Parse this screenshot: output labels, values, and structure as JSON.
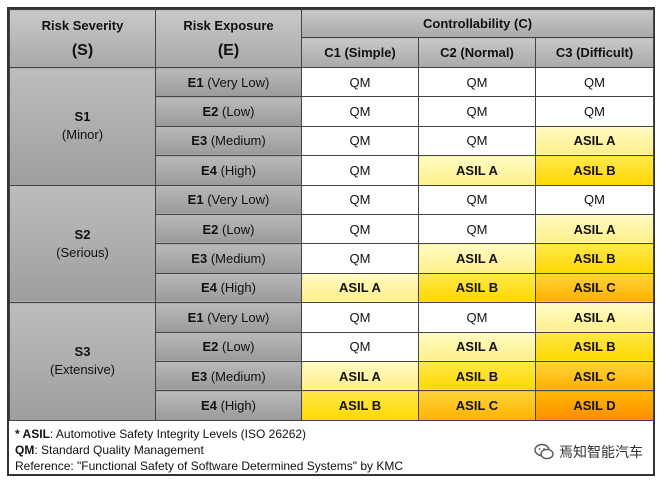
{
  "headers": {
    "severity": {
      "title": "Risk Severity",
      "symbol": "(S)"
    },
    "exposure": {
      "title": "Risk Exposure",
      "symbol": "(E)"
    },
    "controllability": {
      "title": "Controllability (C)",
      "cols": [
        "C1 (Simple)",
        "C2 (Normal)",
        "C3 (Difficult)"
      ]
    }
  },
  "severities": [
    {
      "code": "S1",
      "desc": "(Minor)",
      "rows": [
        {
          "level": "E1",
          "desc": "(Very Low)",
          "cells": [
            "QM",
            "QM",
            "QM"
          ]
        },
        {
          "level": "E2",
          "desc": "(Low)",
          "cells": [
            "QM",
            "QM",
            "QM"
          ]
        },
        {
          "level": "E3",
          "desc": "(Medium)",
          "cells": [
            "QM",
            "QM",
            "ASIL A"
          ]
        },
        {
          "level": "E4",
          "desc": "(High)",
          "cells": [
            "QM",
            "ASIL A",
            "ASIL B"
          ]
        }
      ]
    },
    {
      "code": "S2",
      "desc": "(Serious)",
      "rows": [
        {
          "level": "E1",
          "desc": "(Very Low)",
          "cells": [
            "QM",
            "QM",
            "QM"
          ]
        },
        {
          "level": "E2",
          "desc": "(Low)",
          "cells": [
            "QM",
            "QM",
            "ASIL A"
          ]
        },
        {
          "level": "E3",
          "desc": "(Medium)",
          "cells": [
            "QM",
            "ASIL A",
            "ASIL B"
          ]
        },
        {
          "level": "E4",
          "desc": "(High)",
          "cells": [
            "ASIL A",
            "ASIL B",
            "ASIL C"
          ]
        }
      ]
    },
    {
      "code": "S3",
      "desc": "(Extensive)",
      "rows": [
        {
          "level": "E1",
          "desc": "(Very Low)",
          "cells": [
            "QM",
            "QM",
            "ASIL A"
          ]
        },
        {
          "level": "E2",
          "desc": "(Low)",
          "cells": [
            "QM",
            "ASIL A",
            "ASIL B"
          ]
        },
        {
          "level": "E3",
          "desc": "(Medium)",
          "cells": [
            "ASIL A",
            "ASIL B",
            "ASIL C"
          ]
        },
        {
          "level": "E4",
          "desc": "(High)",
          "cells": [
            "ASIL B",
            "ASIL C",
            "ASIL D"
          ]
        }
      ]
    }
  ],
  "cell_colors": {
    "QM": "#ffffff",
    "ASIL A": "#fff6a8",
    "ASIL B": "#ffe000",
    "ASIL C": "#ffc21a",
    "ASIL D": "#ff9e00"
  },
  "notes": [
    {
      "key": "* ASIL",
      "text": ": Automotive Safety Integrity Levels (ISO 26262)"
    },
    {
      "key": "QM",
      "text": ": Standard Quality Management"
    },
    {
      "key": "",
      "text": "Reference:  \"Functional Safety of Software Determined Systems\" by KMC"
    }
  ],
  "watermark": {
    "icon": "wechat-logo-icon",
    "text": "焉知智能汽车"
  }
}
